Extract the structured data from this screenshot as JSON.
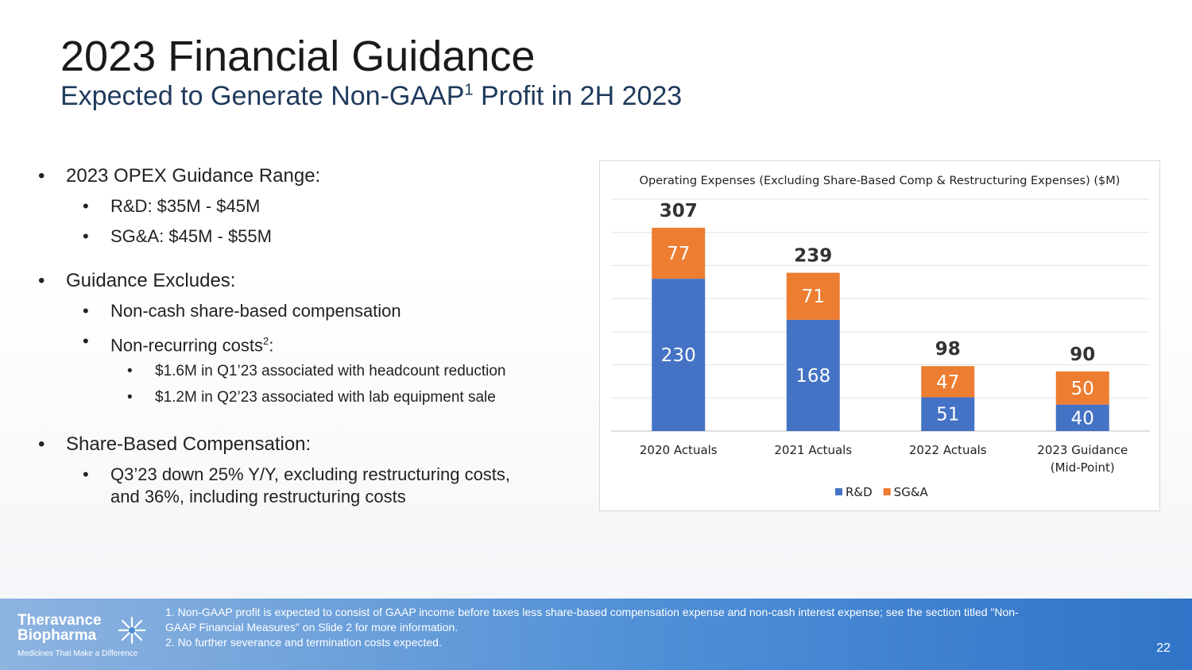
{
  "slide": {
    "title": "2023 Financial Guidance",
    "subtitle_pre": "Expected to Generate Non-GAAP",
    "subtitle_sup": "1",
    "subtitle_post": " Profit in 2H 2023",
    "page_number": "22"
  },
  "bullets": {
    "opex": {
      "heading": "2023 OPEX Guidance Range:",
      "items": [
        "R&D: $35M - $45M",
        "SG&A: $45M - $55M"
      ]
    },
    "excludes": {
      "heading": "Guidance Excludes:",
      "item1": "Non-cash share-based compensation",
      "item2_pre": "Non-recurring costs",
      "item2_sup": "2",
      "item2_post": ":",
      "sub_items": [
        "$1.6M in Q1’23 associated with headcount reduction",
        "$1.2M in Q2’23 associated with lab equipment sale"
      ]
    },
    "sbc": {
      "heading": "Share-Based Compensation:",
      "line1": "Q3’23 down 25% Y/Y, excluding restructuring costs,",
      "line2": "and 36%, including restructuring costs"
    }
  },
  "footer": {
    "logo_line1": "Theravance",
    "logo_line2": "Biopharma",
    "tagline": "Medicines That Make a Difference",
    "note1_line1": "1. Non-GAAP profit is expected to consist of GAAP income before taxes less share-based compensation expense and non-cash interest expense; see the section titled \"Non-",
    "note1_line2": "GAAP Financial Measures\" on Slide 2 for more information.",
    "note2": "2. No further severance and termination costs expected."
  },
  "chart_data": {
    "type": "bar",
    "stacked": true,
    "title": "Operating Expenses (Excluding Share-Based Comp & Restructuring Expenses) ($M)",
    "categories": [
      [
        "2020 Actuals"
      ],
      [
        "2021 Actuals"
      ],
      [
        "2022 Actuals"
      ],
      [
        "2023 Guidance",
        "(Mid-Point)"
      ]
    ],
    "series": [
      {
        "name": "R&D",
        "values": [
          230,
          168,
          51,
          40
        ],
        "color": "#4472c4"
      },
      {
        "name": "SG&A",
        "values": [
          77,
          71,
          47,
          50
        ],
        "color": "#ed7d31"
      }
    ],
    "totals": [
      307,
      239,
      98,
      90
    ],
    "ylim": [
      0,
      350
    ],
    "grid": true,
    "legend": "bottom",
    "xlabel": "",
    "ylabel": ""
  }
}
